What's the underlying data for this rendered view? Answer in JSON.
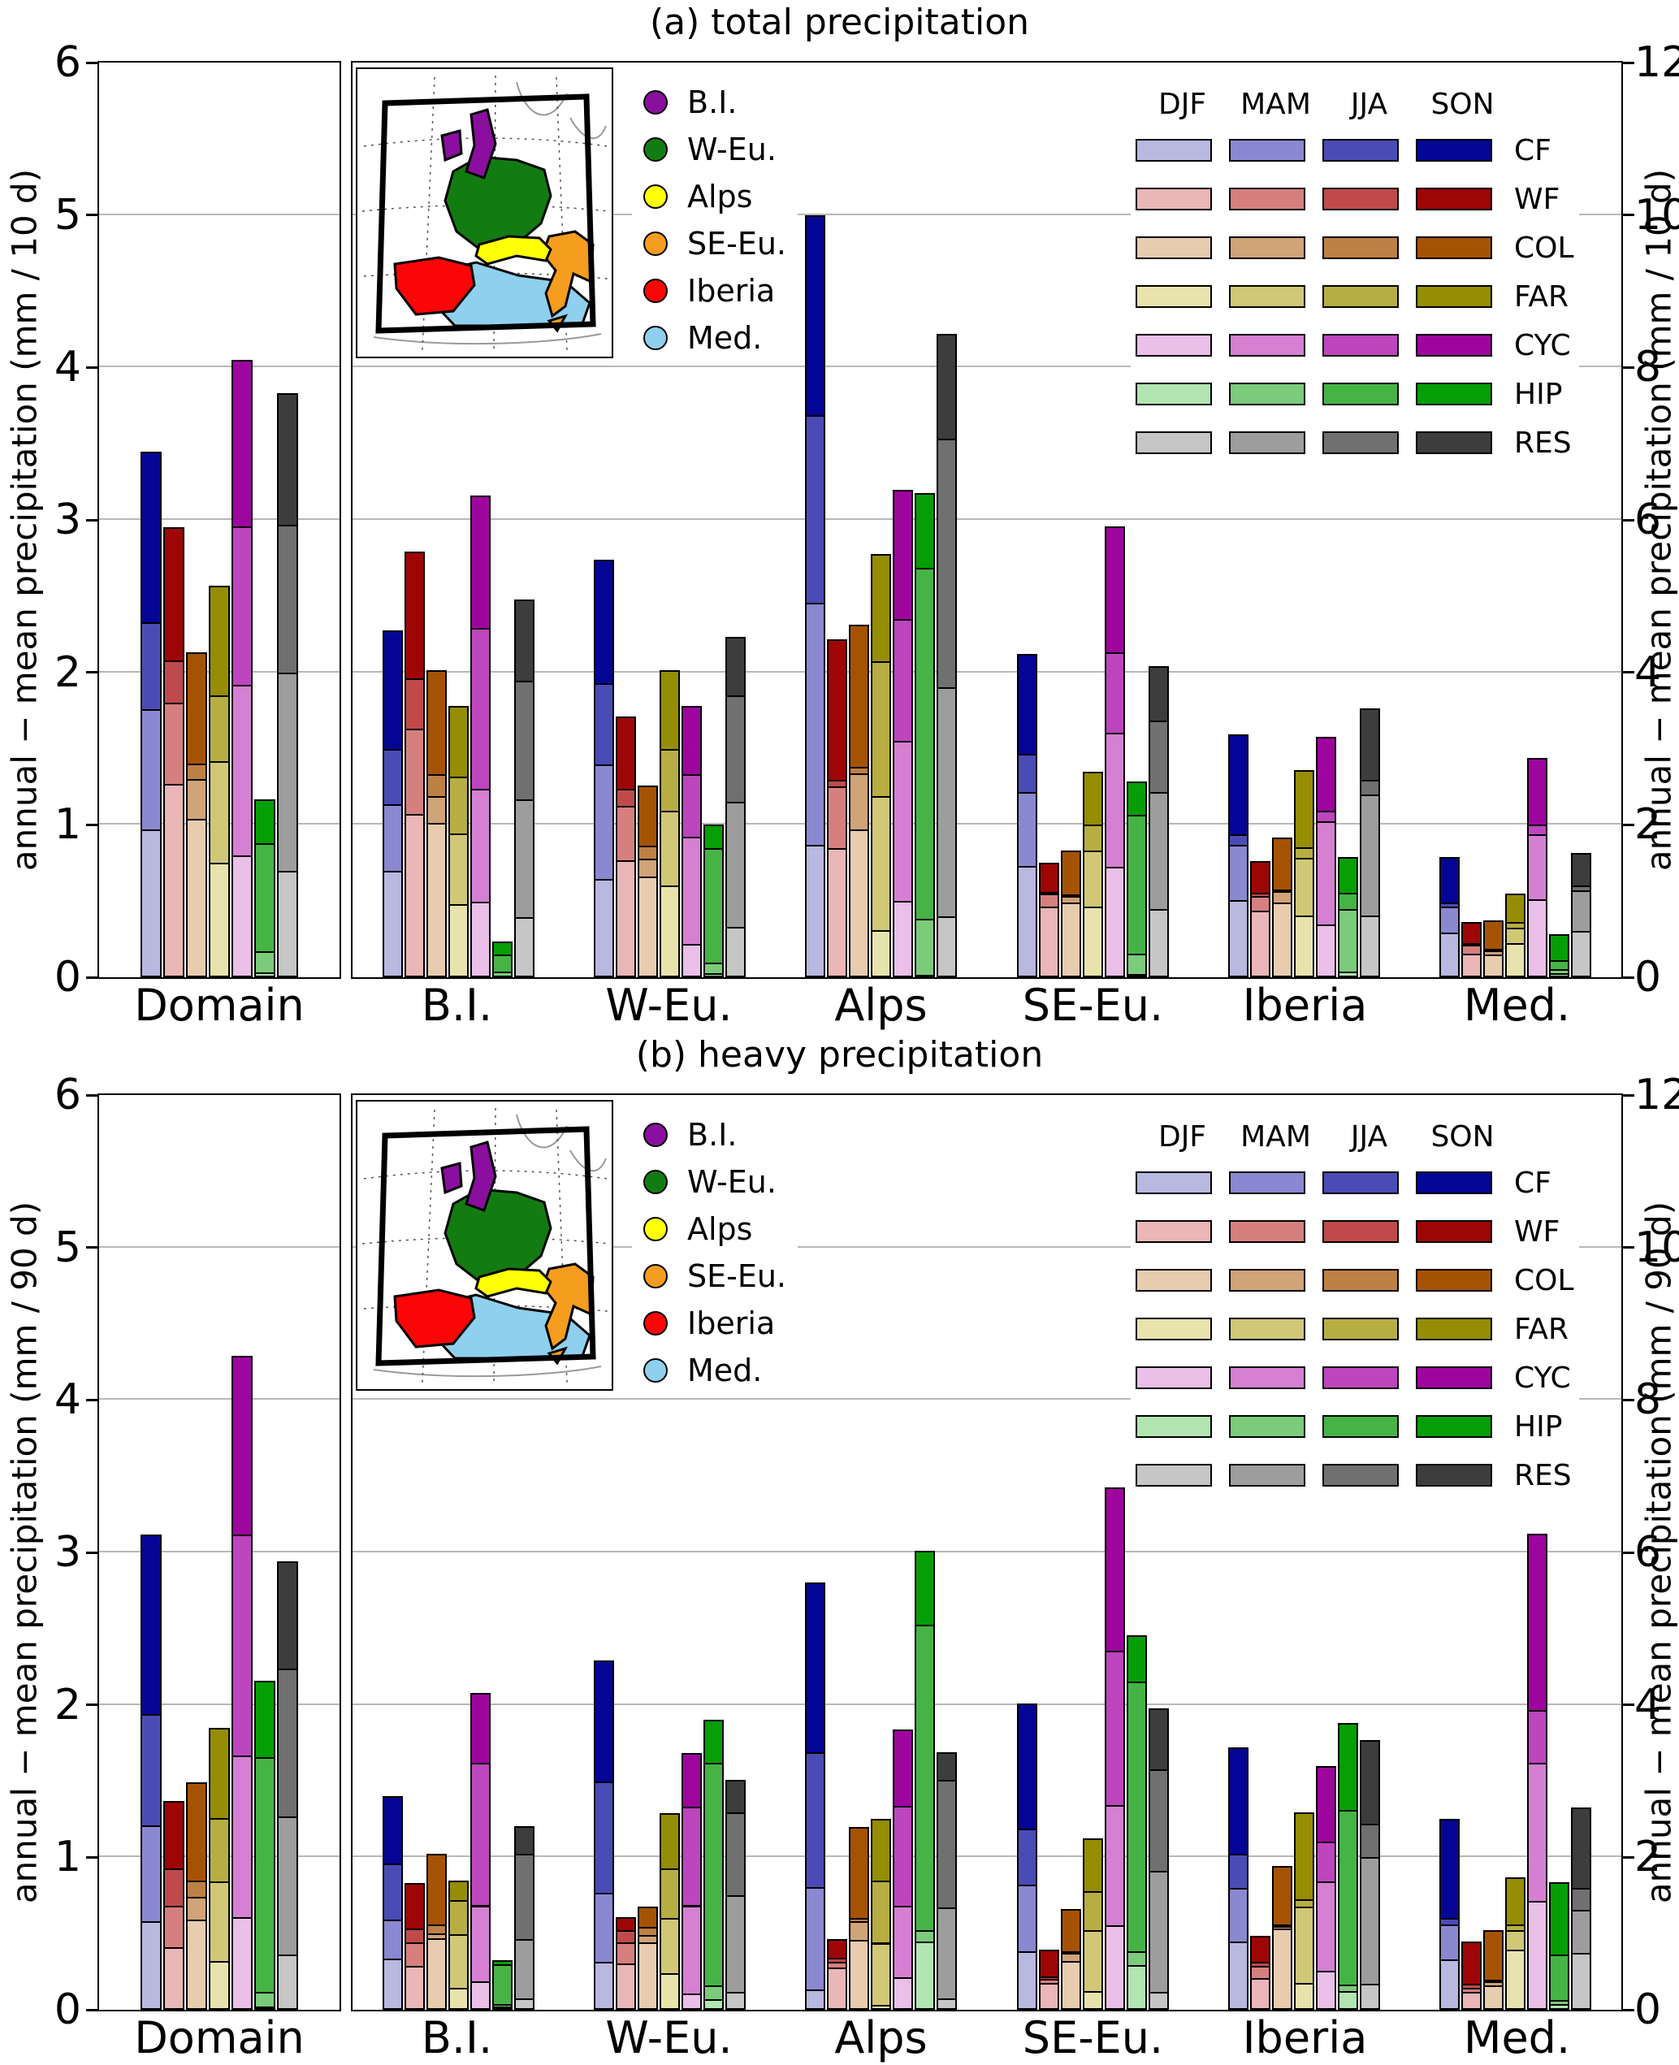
{
  "figure_titles": {
    "panel_a": "(a) total precipitation",
    "panel_b": "(b) heavy precipitation"
  },
  "map_inset": {
    "regions": [
      {
        "label": "B.I.",
        "color": "#8a0f9e"
      },
      {
        "label": "W-Eu.",
        "color": "#127c12"
      },
      {
        "label": "Alps",
        "color": "#ffff05"
      },
      {
        "label": "SE-Eu.",
        "color": "#f59d1e"
      },
      {
        "label": "Iberia",
        "color": "#fb0606"
      },
      {
        "label": "Med.",
        "color": "#8ed0ee"
      }
    ]
  },
  "chart_data": {
    "type": "bar",
    "stacked": true,
    "grid": true,
    "seasons": [
      "DJF",
      "MAM",
      "JJA",
      "SON"
    ],
    "circulation_types": [
      "CF",
      "WF",
      "COL",
      "FAR",
      "CYC",
      "HIP",
      "RES"
    ],
    "colors": {
      "CF": [
        "#b8b8e0",
        "#8a88d0",
        "#4b4bb5",
        "#050596"
      ],
      "WF": [
        "#eab6b8",
        "#d5807f",
        "#c04a4a",
        "#9e0505"
      ],
      "COL": [
        "#e8ccb0",
        "#d0a378",
        "#bd8045",
        "#a55303"
      ],
      "FAR": [
        "#e8e3ad",
        "#d0c877",
        "#b7ae43",
        "#958d03"
      ],
      "CYC": [
        "#eabfe8",
        "#d580d2",
        "#bd45bd",
        "#9e059e"
      ],
      "HIP": [
        "#b2e5b2",
        "#7bcb7b",
        "#45b445",
        "#059e05"
      ],
      "RES": [
        "#c6c6c6",
        "#9d9d9d",
        "#707070",
        "#3d3d3d"
      ]
    },
    "panels": [
      {
        "id": "a",
        "title": "(a) total precipitation",
        "left_axis": {
          "label": "annual − mean precipitation (mm / 10 d)",
          "ticks": [
            0,
            1,
            2,
            3,
            4,
            5,
            6
          ],
          "max": 6
        },
        "right_axis": {
          "label": "annual − mean precipitation (mm / 10 d)",
          "ticks": [
            0,
            2,
            4,
            6,
            8,
            10,
            12
          ],
          "max": 12
        },
        "domain": {
          "label": "Domain",
          "values": {
            "CF": [
              0.97,
              0.79,
              0.57,
              1.12
            ],
            "WF": [
              1.27,
              0.53,
              0.28,
              0.87
            ],
            "COL": [
              1.04,
              0.26,
              0.1,
              0.73
            ],
            "FAR": [
              0.75,
              0.67,
              0.43,
              0.72
            ],
            "CYC": [
              0.8,
              1.12,
              1.04,
              1.09
            ],
            "HIP": [
              0.03,
              0.14,
              0.71,
              0.29
            ],
            "RES": [
              0.7,
              1.3,
              0.97,
              0.86
            ]
          }
        },
        "regions": [
          {
            "label": "B.I.",
            "values": {
              "CF": [
                1.4,
                0.87,
                0.72,
                1.56
              ],
              "WF": [
                2.14,
                1.12,
                0.66,
                1.67
              ],
              "COL": [
                2.03,
                0.35,
                0.28,
                1.37
              ],
              "FAR": [
                0.96,
                0.93,
                0.74,
                0.93
              ],
              "CYC": [
                0.99,
                1.48,
                2.11,
                1.74
              ],
              "HIP": [
                0.02,
                0.05,
                0.23,
                0.17
              ],
              "RES": [
                0.79,
                1.54,
                1.56,
                1.07
              ]
            }
          },
          {
            "label": "W-Eu.",
            "values": {
              "CF": [
                1.29,
                1.5,
                1.07,
                1.62
              ],
              "WF": [
                1.53,
                0.72,
                0.22,
                0.95
              ],
              "COL": [
                1.32,
                0.24,
                0.17,
                0.79
              ],
              "FAR": [
                1.21,
                0.98,
                0.8,
                1.04
              ],
              "CYC": [
                0.44,
                1.4,
                0.82,
                0.9
              ],
              "HIP": [
                0.05,
                0.14,
                1.51,
                0.3
              ],
              "RES": [
                0.66,
                1.64,
                1.4,
                0.77
              ]
            }
          },
          {
            "label": "Alps",
            "values": {
              "CF": [
                1.74,
                3.17,
                2.47,
                2.62
              ],
              "WF": [
                1.69,
                0.81,
                0.09,
                1.84
              ],
              "COL": [
                1.94,
                0.74,
                0.08,
                1.87
              ],
              "FAR": [
                0.62,
                1.76,
                1.77,
                1.4
              ],
              "CYC": [
                1.0,
                2.1,
                1.6,
                1.7
              ],
              "HIP": [
                0.03,
                0.74,
                4.6,
                0.98
              ],
              "RES": [
                0.8,
                3.0,
                3.27,
                1.37
              ]
            }
          },
          {
            "label": "SE-Eu.",
            "values": {
              "CF": [
                1.46,
                0.97,
                0.5,
                1.31
              ],
              "WF": [
                0.93,
                0.17,
                0.02,
                0.38
              ],
              "COL": [
                0.98,
                0.09,
                0.02,
                0.57
              ],
              "FAR": [
                0.93,
                0.73,
                0.34,
                0.7
              ],
              "CYC": [
                1.45,
                1.76,
                1.05,
                1.66
              ],
              "HIP": [
                0.04,
                0.27,
                1.82,
                0.44
              ],
              "RES": [
                0.9,
                1.53,
                0.94,
                0.71
              ]
            }
          },
          {
            "label": "Iberia",
            "values": {
              "CF": [
                1.01,
                0.73,
                0.14,
                1.31
              ],
              "WF": [
                0.87,
                0.2,
                0.04,
                0.41
              ],
              "COL": [
                0.98,
                0.15,
                0.02,
                0.68
              ],
              "FAR": [
                0.81,
                0.76,
                0.14,
                1.01
              ],
              "CYC": [
                0.69,
                1.36,
                0.14,
                0.96
              ],
              "HIP": [
                0.08,
                0.82,
                0.21,
                0.47
              ],
              "RES": [
                0.81,
                1.59,
                0.19,
                0.94
              ]
            }
          },
          {
            "label": "Med.",
            "values": {
              "CF": [
                0.59,
                0.34,
                0.05,
                0.6
              ],
              "WF": [
                0.31,
                0.12,
                0.02,
                0.28
              ],
              "COL": [
                0.3,
                0.05,
                0.02,
                0.38
              ],
              "FAR": [
                0.45,
                0.2,
                0.08,
                0.37
              ],
              "CYC": [
                1.02,
                0.86,
                0.12,
                0.88
              ],
              "HIP": [
                0.05,
                0.06,
                0.11,
                0.35
              ],
              "RES": [
                0.61,
                0.53,
                0.06,
                0.43
              ]
            }
          }
        ]
      },
      {
        "id": "b",
        "title": "(b) heavy precipitation",
        "left_axis": {
          "label": "annual − mean precipitation (mm / 90 d)",
          "ticks": [
            0,
            1,
            2,
            3,
            4,
            5,
            6
          ],
          "max": 6
        },
        "right_axis": {
          "label": "annual − mean precipitation (mm / 90 d)",
          "ticks": [
            0,
            2,
            4,
            6,
            8,
            10,
            12
          ],
          "max": 12
        },
        "domain": {
          "label": "Domain",
          "values": {
            "CF": [
              0.58,
              0.63,
              0.73,
              1.18
            ],
            "WF": [
              0.41,
              0.27,
              0.25,
              0.44
            ],
            "COL": [
              0.59,
              0.15,
              0.11,
              0.64
            ],
            "FAR": [
              0.32,
              0.52,
              0.42,
              0.59
            ],
            "CYC": [
              0.61,
              1.06,
              1.45,
              1.17
            ],
            "HIP": [
              0.02,
              0.1,
              1.54,
              0.5
            ],
            "RES": [
              0.36,
              0.91,
              0.97,
              0.7
            ]
          }
        },
        "regions": [
          {
            "label": "B.I.",
            "values": {
              "CF": [
                0.67,
                0.51,
                0.74,
                0.88
              ],
              "WF": [
                0.58,
                0.31,
                0.18,
                0.59
              ],
              "COL": [
                0.94,
                0.06,
                0.12,
                0.93
              ],
              "FAR": [
                0.29,
                0.7,
                0.45,
                0.26
              ],
              "CYC": [
                0.37,
                1.0,
                1.87,
                0.92
              ],
              "HIP": [
                0.04,
                0.04,
                0.52,
                0.05
              ],
              "RES": [
                0.15,
                0.78,
                1.12,
                0.36
              ]
            }
          },
          {
            "label": "W-Eu.",
            "values": {
              "CF": [
                0.63,
                0.9,
                1.46,
                1.59
              ],
              "WF": [
                0.61,
                0.28,
                0.15,
                0.18
              ],
              "COL": [
                0.88,
                0.1,
                0.11,
                0.26
              ],
              "FAR": [
                0.48,
                0.72,
                0.66,
                0.72
              ],
              "CYC": [
                0.21,
                1.16,
                1.29,
                0.71
              ],
              "HIP": [
                0.14,
                0.18,
                2.92,
                0.57
              ],
              "RES": [
                0.23,
                1.27,
                1.09,
                0.43
              ]
            }
          },
          {
            "label": "Alps",
            "values": {
              "CF": [
                0.27,
                1.34,
                1.77,
                2.23
              ],
              "WF": [
                0.56,
                0.07,
                0.05,
                0.25
              ],
              "COL": [
                0.92,
                0.24,
                0.05,
                1.19
              ],
              "FAR": [
                0.06,
                0.82,
                0.82,
                0.81
              ],
              "CYC": [
                0.43,
                0.93,
                1.32,
                1.0
              ],
              "HIP": [
                0.9,
                0.15,
                4.0,
                0.97
              ],
              "RES": [
                0.15,
                1.19,
                1.68,
                0.36
              ]
            }
          },
          {
            "label": "SE-Eu.",
            "values": {
              "CF": [
                0.77,
                0.87,
                0.74,
                1.64
              ],
              "WF": [
                0.35,
                0.06,
                0.03,
                0.35
              ],
              "COL": [
                0.64,
                0.11,
                0.02,
                0.55
              ],
              "FAR": [
                0.25,
                0.8,
                0.51,
                0.69
              ],
              "CYC": [
                1.11,
                1.58,
                2.02,
                2.14
              ],
              "HIP": [
                0.59,
                0.18,
                3.54,
                0.6
              ],
              "RES": [
                0.23,
                1.59,
                1.33,
                0.8
              ]
            }
          },
          {
            "label": "Iberia",
            "values": {
              "CF": [
                0.9,
                0.7,
                0.45,
                1.39
              ],
              "WF": [
                0.42,
                0.16,
                0.05,
                0.34
              ],
              "COL": [
                1.07,
                0.03,
                0.02,
                0.77
              ],
              "FAR": [
                0.35,
                1.0,
                0.1,
                1.14
              ],
              "CYC": [
                0.51,
                1.17,
                0.53,
                0.99
              ],
              "HIP": [
                0.25,
                0.08,
                2.29,
                1.14
              ],
              "RES": [
                0.34,
                1.66,
                0.44,
                1.1
              ]
            }
          },
          {
            "label": "Med.",
            "values": {
              "CF": [
                0.66,
                0.46,
                0.09,
                1.3
              ],
              "WF": [
                0.23,
                0.06,
                0.05,
                0.56
              ],
              "COL": [
                0.32,
                0.05,
                0.02,
                0.66
              ],
              "FAR": [
                0.79,
                0.25,
                0.08,
                0.62
              ],
              "CYC": [
                1.43,
                1.81,
                0.69,
                2.31
              ],
              "HIP": [
                0.08,
                0.05,
                0.6,
                0.94
              ],
              "RES": [
                0.75,
                0.56,
                0.29,
                1.05
              ]
            }
          }
        ]
      }
    ]
  }
}
